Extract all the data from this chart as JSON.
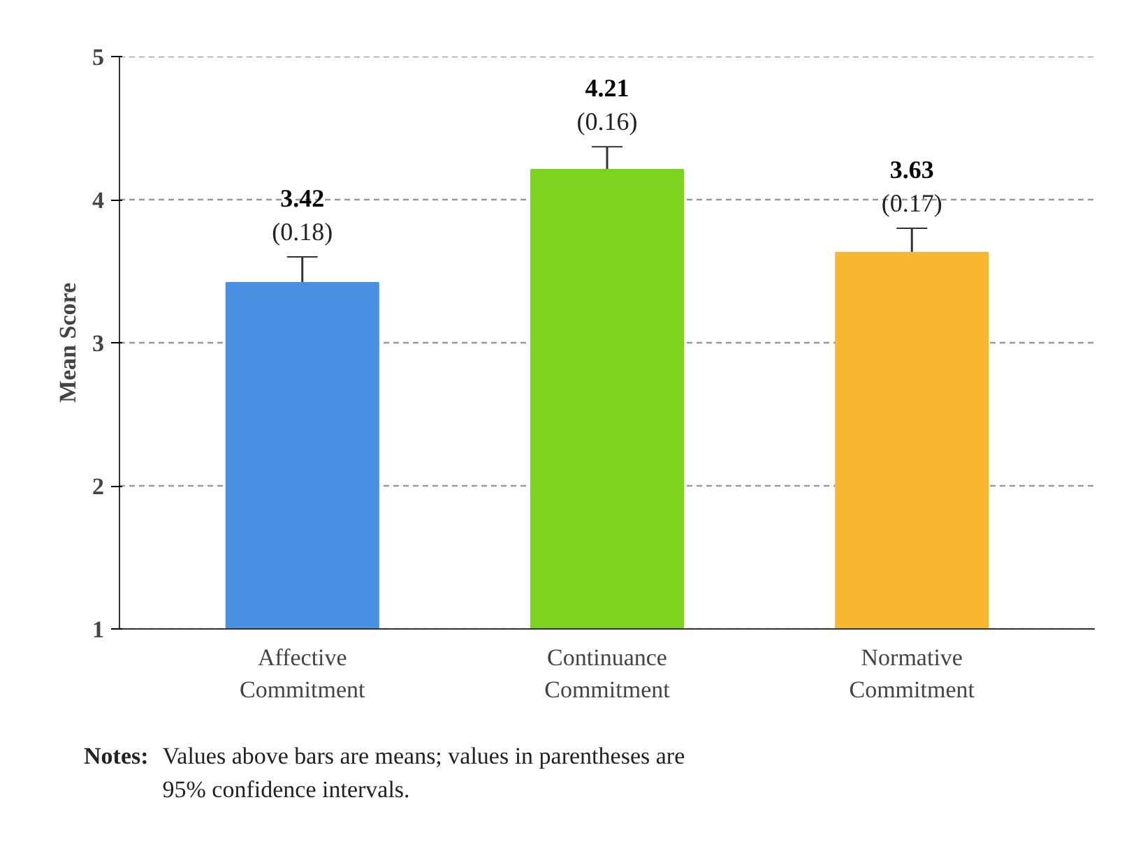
{
  "chart_data": {
    "type": "bar",
    "ylabel": "Mean Score",
    "categories": [
      "Affective\nCommitment",
      "Continuance\nCommitment",
      "Normative\nCommitment"
    ],
    "values": [
      3.42,
      4.21,
      3.63
    ],
    "colors": [
      "#4a90e2",
      "#7ed321",
      "#f7b731"
    ],
    "errors": [
      0.18,
      0.16,
      0.17
    ],
    "value_labels": [
      "3.42\n(0.18)",
      "4.21\n(0.16)",
      "3.63\n(0.17)"
    ],
    "ylim": [
      1,
      5
    ],
    "yticks": [
      1,
      2,
      3,
      4,
      5
    ],
    "grid": "y",
    "annotations": [
      "Notes:",
      "Values above bars are means; values in parentheses are\n95% confidence intervals."
    ]
  }
}
